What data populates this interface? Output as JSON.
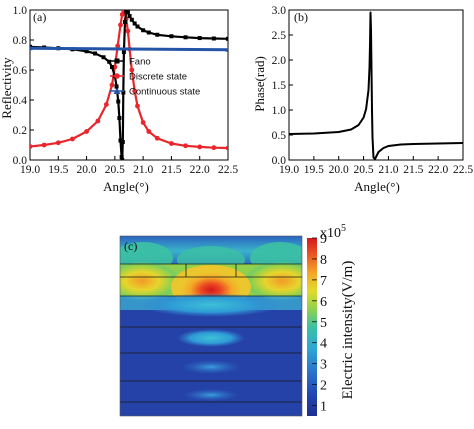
{
  "chart_data": [
    {
      "type": "line",
      "panel_label": "(a)",
      "xlabel": "Angle(°)",
      "ylabel": "Reflectivity",
      "xlim": [
        19.0,
        22.5
      ],
      "ylim": [
        0.0,
        1.0
      ],
      "xticks": [
        "19.0",
        "19.5",
        "20.0",
        "20.5",
        "21.0",
        "21.5",
        "22.0",
        "22.5"
      ],
      "yticks": [
        "0.0",
        "0.2",
        "0.4",
        "0.6",
        "0.8",
        "1.0"
      ],
      "legend_position": "center-right",
      "series": [
        {
          "name": "Fano",
          "color": "#000000",
          "marker": "square",
          "x": [
            19.0,
            19.25,
            19.5,
            19.75,
            20.0,
            20.15,
            20.3,
            20.4,
            20.45,
            20.5,
            20.53,
            20.56,
            20.58,
            20.6,
            20.62,
            20.63,
            20.64,
            20.65,
            20.66,
            20.68,
            20.7,
            20.73,
            20.76,
            20.8,
            20.85,
            20.9,
            21.0,
            21.1,
            21.25,
            21.5,
            21.75,
            22.0,
            22.25,
            22.5
          ],
          "y": [
            0.755,
            0.75,
            0.745,
            0.738,
            0.725,
            0.71,
            0.685,
            0.655,
            0.62,
            0.56,
            0.49,
            0.39,
            0.28,
            0.13,
            0.02,
            0.0,
            0.12,
            0.45,
            0.72,
            0.92,
            0.99,
            0.985,
            0.96,
            0.935,
            0.91,
            0.89,
            0.865,
            0.85,
            0.835,
            0.825,
            0.818,
            0.813,
            0.81,
            0.808
          ]
        },
        {
          "name": "Discrete state",
          "color": "#e8262b",
          "marker": "circle",
          "x": [
            19.0,
            19.25,
            19.5,
            19.75,
            20.0,
            20.2,
            20.35,
            20.45,
            20.5,
            20.55,
            20.6,
            20.63,
            20.65,
            20.68,
            20.7,
            20.73,
            20.76,
            20.8,
            20.85,
            20.9,
            21.0,
            21.1,
            21.25,
            21.5,
            21.75,
            22.0,
            22.25,
            22.5
          ],
          "y": [
            0.09,
            0.1,
            0.115,
            0.14,
            0.19,
            0.26,
            0.37,
            0.5,
            0.62,
            0.76,
            0.9,
            0.97,
            1.0,
            0.98,
            0.94,
            0.86,
            0.74,
            0.6,
            0.46,
            0.36,
            0.25,
            0.19,
            0.145,
            0.11,
            0.095,
            0.087,
            0.082,
            0.08
          ]
        },
        {
          "name": "Continuous state",
          "color": "#2454a6",
          "marker": "triangle",
          "x": [
            19.0,
            22.5
          ],
          "y": [
            0.745,
            0.735
          ]
        }
      ]
    },
    {
      "type": "line",
      "panel_label": "(b)",
      "xlabel": "Angle(°)",
      "ylabel": "Phase(rad)",
      "xlim": [
        19.0,
        22.5
      ],
      "ylim": [
        0.0,
        3.0
      ],
      "xticks": [
        "19.0",
        "19.5",
        "20.0",
        "20.5",
        "21.0",
        "21.5",
        "22.0",
        "22.5"
      ],
      "yticks": [
        "0.0",
        "0.5",
        "1.0",
        "1.5",
        "2.0",
        "2.5",
        "3.0"
      ],
      "series": [
        {
          "color": "#000000",
          "x": [
            19.0,
            19.5,
            20.0,
            20.25,
            20.4,
            20.5,
            20.55,
            20.6,
            20.62,
            20.63,
            20.64,
            20.65,
            20.66,
            20.67,
            20.68,
            20.7,
            20.73,
            20.76,
            20.8,
            20.9,
            21.0,
            21.25,
            21.5,
            22.0,
            22.5
          ],
          "y": [
            0.52,
            0.53,
            0.56,
            0.61,
            0.7,
            0.85,
            1.02,
            1.4,
            1.85,
            2.3,
            2.95,
            2.6,
            1.8,
            1.0,
            0.45,
            0.05,
            0.02,
            0.08,
            0.16,
            0.24,
            0.28,
            0.31,
            0.32,
            0.33,
            0.34
          ]
        }
      ]
    },
    {
      "type": "heatmap",
      "panel_label": "(c)",
      "colorbar_title": "Electric intensity(V/m)",
      "colorbar_exponent_base": "x10",
      "colorbar_exponent": "5",
      "colorbar_range": [
        0.5,
        9
      ],
      "colorbar_ticks": [
        "1",
        "2",
        "3",
        "4",
        "5",
        "6",
        "7",
        "8",
        "9"
      ]
    }
  ]
}
